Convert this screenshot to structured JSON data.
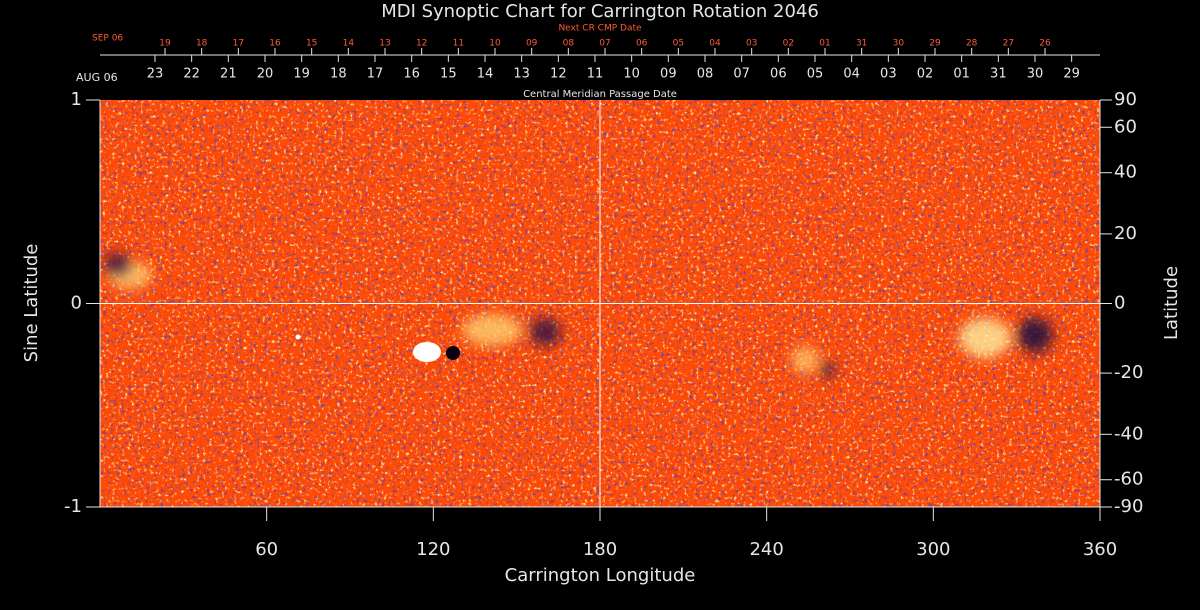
{
  "chart_data": {
    "type": "synoptic_map",
    "title": "MDI Synoptic Chart for Carrington Rotation 2046",
    "top_axis": {
      "label": "Next CR CMP Date",
      "start_label": "SEP 06",
      "dates": [
        "19",
        "18",
        "17",
        "16",
        "15",
        "14",
        "13",
        "12",
        "11",
        "10",
        "09",
        "08",
        "07",
        "06",
        "05",
        "04",
        "03",
        "02",
        "01",
        "31",
        "30",
        "29",
        "28",
        "27",
        "26"
      ],
      "positions": [
        23.4,
        36.6,
        49.8,
        63.0,
        76.2,
        89.4,
        102.6,
        115.8,
        129.0,
        142.2,
        155.4,
        168.6,
        181.8,
        195.0,
        208.2,
        221.4,
        234.6,
        247.8,
        261.0,
        274.2,
        287.4,
        300.6,
        313.8,
        327.0,
        340.2
      ]
    },
    "date_axis": {
      "label": "Central Meridian Passage Date",
      "start_label": "AUG 06",
      "dates": [
        "23",
        "22",
        "21",
        "20",
        "19",
        "18",
        "17",
        "16",
        "15",
        "14",
        "13",
        "12",
        "11",
        "10",
        "09",
        "08",
        "07",
        "06",
        "05",
        "04",
        "03",
        "02",
        "01",
        "31",
        "30",
        "29"
      ],
      "positions": [
        19.8,
        33.0,
        46.2,
        59.4,
        72.6,
        85.8,
        99.0,
        112.2,
        125.4,
        138.6,
        151.8,
        165.0,
        178.2,
        191.4,
        204.6,
        217.8,
        231.0,
        244.2,
        257.4,
        270.6,
        283.8,
        297.0,
        310.2,
        323.4,
        336.6,
        349.8
      ]
    },
    "xlabel": "Carrington Longitude",
    "xlim": [
      0,
      360
    ],
    "xticks": [
      60,
      120,
      180,
      240,
      300,
      360
    ],
    "ylabel": "Sine Latitude",
    "ylim": [
      -1,
      1
    ],
    "yticks": [
      -1,
      0,
      1
    ],
    "y2label": "Latitude",
    "y2ticks": [
      90,
      60,
      40,
      20,
      0,
      -20,
      -40,
      -60,
      -90
    ],
    "x_ref": 180,
    "y_ref": 0
  }
}
